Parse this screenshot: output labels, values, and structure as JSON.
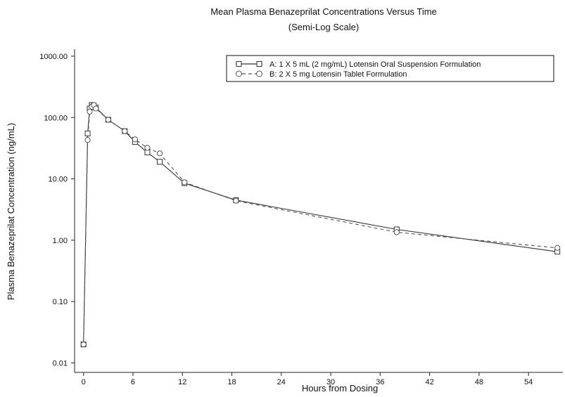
{
  "chart_data": {
    "type": "line",
    "title": "Mean Plasma Benazeprilat Concentrations Versus Time",
    "subtitle": "(Semi-Log Scale)",
    "xlabel": "Hours from Dosing",
    "ylabel": "Plasma Benazeprilat Concentration (ng/mL)",
    "xlim": [
      -1,
      58
    ],
    "ylim": [
      0.007,
      1300
    ],
    "yscale": "log",
    "xticks": [
      0,
      6,
      12,
      18,
      24,
      30,
      36,
      42,
      48,
      54
    ],
    "yticks": [
      {
        "value": 0.01,
        "label": "0.01"
      },
      {
        "value": 0.1,
        "label": "0.10"
      },
      {
        "value": 1,
        "label": "1.00"
      },
      {
        "value": 10,
        "label": "10.00"
      },
      {
        "value": 100,
        "label": "100.00"
      },
      {
        "value": 1000,
        "label": "1000.00"
      }
    ],
    "grid": false,
    "legend_position": "top-right",
    "series": [
      {
        "name": "A: 1 X 5 mL (2 mg/mL) Lotensin Oral Suspension Formulation",
        "line_style": "solid",
        "marker": "square",
        "x": [
          0,
          0.5,
          0.75,
          1,
          1.25,
          1.5,
          3,
          5,
          6.25,
          7.75,
          9.25,
          12.25,
          18.5,
          38,
          57.5
        ],
        "y": [
          0.02,
          55,
          140,
          160,
          155,
          145,
          92,
          60,
          40,
          27,
          19,
          8.5,
          4.5,
          1.5,
          0.65
        ]
      },
      {
        "name": "B: 2 X 5 mg Lotensin Tablet Formulation",
        "line_style": "dashed",
        "marker": "circle",
        "x": [
          0,
          0.5,
          0.75,
          1,
          1.25,
          1.5,
          3,
          5,
          6.25,
          7.75,
          9.25,
          12.25,
          18.5,
          38,
          57.5
        ],
        "y": [
          0.02,
          43,
          125,
          150,
          160,
          140,
          92,
          60,
          44,
          32,
          26,
          8.8,
          4.4,
          1.35,
          0.75
        ]
      }
    ]
  },
  "colors": {
    "axis": "#222222",
    "series_a": "#333333",
    "series_b": "#555555",
    "marker_fill": "#ffffff"
  }
}
